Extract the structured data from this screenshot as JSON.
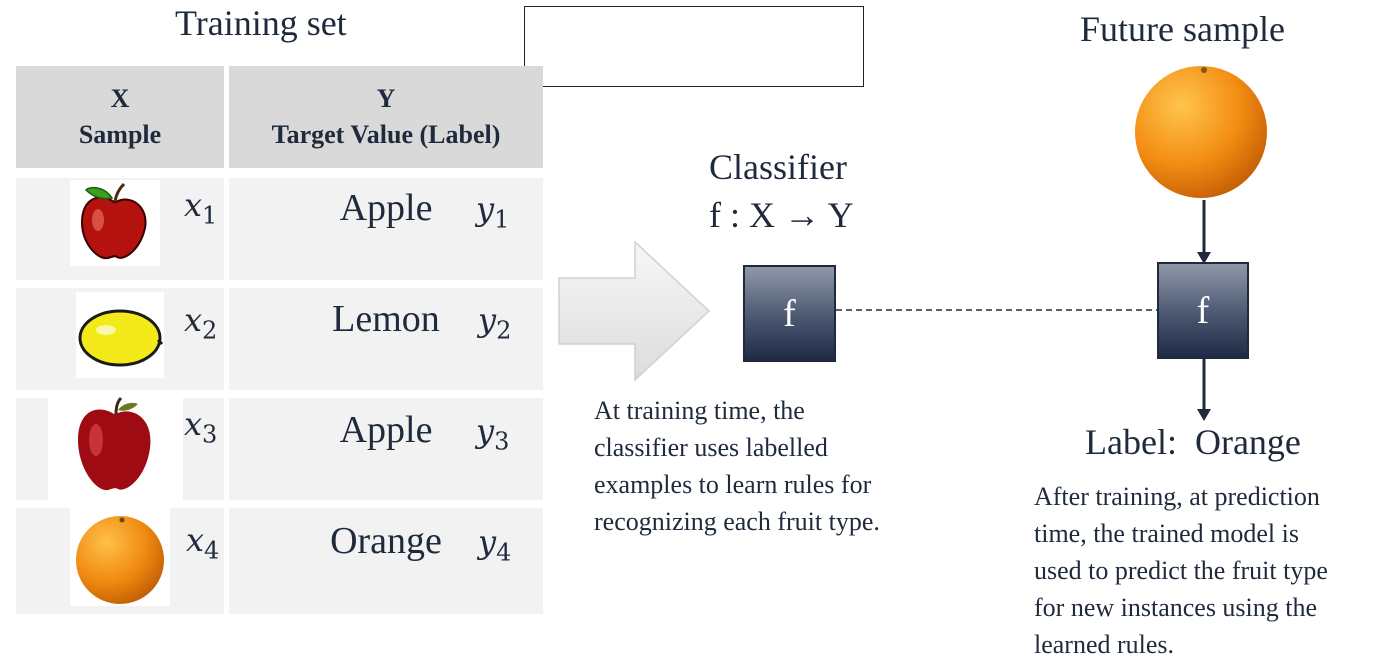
{
  "training": {
    "title": "Training set",
    "header_x_line1": "X",
    "header_x_line2": "Sample",
    "header_y_line1": "Y",
    "header_y_line2": "Target Value (Label)",
    "rows": [
      {
        "fruit_icon": "apple-icon",
        "x_var": "x",
        "x_sub": "1",
        "label": "Apple",
        "y_var": "y",
        "y_sub": "1"
      },
      {
        "fruit_icon": "lemon-icon",
        "x_var": "x",
        "x_sub": "2",
        "label": "Lemon",
        "y_var": "y",
        "y_sub": "2"
      },
      {
        "fruit_icon": "apple-icon",
        "x_var": "x",
        "x_sub": "3",
        "label": "Apple",
        "y_var": "y",
        "y_sub": "3"
      },
      {
        "fruit_icon": "orange-icon",
        "x_var": "x",
        "x_sub": "4",
        "label": "Orange",
        "y_var": "y",
        "y_sub": "4"
      }
    ]
  },
  "classifier": {
    "title": "Classifier",
    "formula": "f : X → Y",
    "box_label": "f",
    "description_lines": [
      "At training time, the",
      "classifier uses labelled",
      "examples to learn rules for",
      "recognizing each fruit type."
    ]
  },
  "prediction": {
    "title": "Future sample",
    "box_label": "f",
    "output_label": "Label:  Orange",
    "description_lines": [
      "After training, at prediction",
      "time, the trained model is",
      "used to predict the fruit type",
      "for new instances using the",
      "learned rules."
    ]
  },
  "colors": {
    "text": "#1f2a3c",
    "header_bg": "#d9d9d9",
    "cell_bg": "#f2f2f2",
    "box_dark": "#1f2a44"
  }
}
